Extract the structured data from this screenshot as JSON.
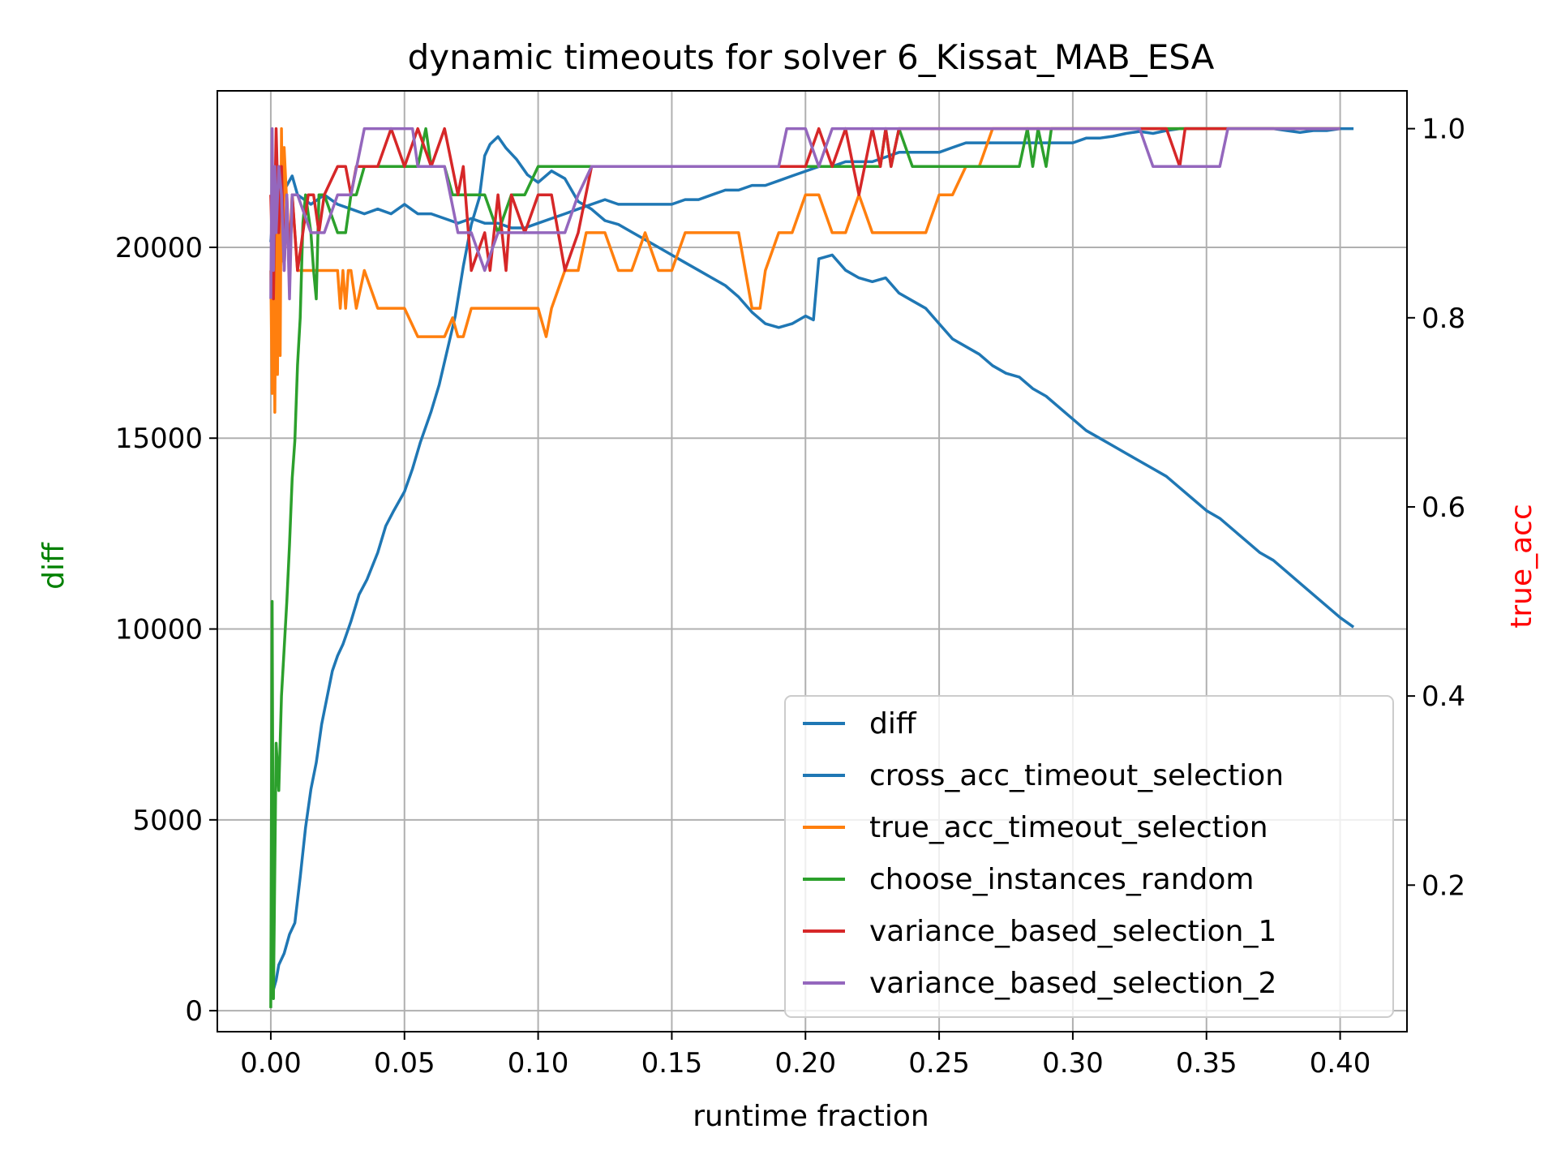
{
  "chart_data": {
    "type": "line",
    "title": "dynamic timeouts for solver 6_Kissat_MAB_ESA",
    "xlabel": "runtime fraction",
    "ylabel_left": "diff",
    "ylabel_right": "true_acc",
    "xlim": [
      -0.02,
      0.425
    ],
    "ylim_left": [
      -550,
      24100
    ],
    "ylim_right": [
      0.045,
      1.04
    ],
    "x_ticks": [
      0.0,
      0.05,
      0.1,
      0.15,
      0.2,
      0.25,
      0.3,
      0.35,
      0.4
    ],
    "x_tick_labels": [
      "0.00",
      "0.05",
      "0.10",
      "0.15",
      "0.20",
      "0.25",
      "0.30",
      "0.35",
      "0.40"
    ],
    "y_left_ticks": [
      0,
      5000,
      10000,
      15000,
      20000
    ],
    "y_left_tick_labels": [
      "0",
      "5000",
      "10000",
      "15000",
      "20000"
    ],
    "y_right_ticks": [
      0.2,
      0.4,
      0.6,
      0.8,
      1.0
    ],
    "y_right_tick_labels": [
      "0.2",
      "0.4",
      "0.6",
      "0.8",
      "1.0"
    ],
    "grid": true,
    "legend_position": "lower right",
    "colors": {
      "left_label": "#008000",
      "right_label": "#ff0000"
    },
    "series": [
      {
        "name": "diff",
        "axis": "left",
        "color": "#1f77b4",
        "x": [
          0.0,
          0.001,
          0.002,
          0.003,
          0.005,
          0.007,
          0.009,
          0.011,
          0.013,
          0.015,
          0.017,
          0.019,
          0.021,
          0.023,
          0.025,
          0.027,
          0.03,
          0.033,
          0.036,
          0.04,
          0.043,
          0.046,
          0.05,
          0.053,
          0.056,
          0.06,
          0.063,
          0.066,
          0.069,
          0.072,
          0.075,
          0.078,
          0.08,
          0.082,
          0.085,
          0.088,
          0.092,
          0.096,
          0.1,
          0.105,
          0.11,
          0.115,
          0.12,
          0.125,
          0.13,
          0.135,
          0.14,
          0.145,
          0.15,
          0.155,
          0.16,
          0.165,
          0.17,
          0.175,
          0.18,
          0.185,
          0.19,
          0.195,
          0.2,
          0.203,
          0.205,
          0.21,
          0.215,
          0.22,
          0.225,
          0.23,
          0.235,
          0.24,
          0.245,
          0.25,
          0.255,
          0.26,
          0.265,
          0.27,
          0.275,
          0.28,
          0.285,
          0.29,
          0.295,
          0.3,
          0.305,
          0.31,
          0.315,
          0.32,
          0.325,
          0.33,
          0.335,
          0.34,
          0.345,
          0.35,
          0.355,
          0.36,
          0.365,
          0.37,
          0.375,
          0.38,
          0.385,
          0.39,
          0.395,
          0.4,
          0.405
        ],
        "y": [
          600,
          550,
          800,
          1200,
          1500,
          2000,
          2300,
          3500,
          4800,
          5800,
          6500,
          7500,
          8200,
          8900,
          9300,
          9600,
          10200,
          10900,
          11300,
          12000,
          12700,
          13100,
          13600,
          14200,
          14900,
          15700,
          16400,
          17300,
          18200,
          19500,
          20600,
          21300,
          22400,
          22700,
          22900,
          22600,
          22300,
          21900,
          21700,
          22000,
          21800,
          21200,
          21000,
          20700,
          20600,
          20400,
          20200,
          20000,
          19800,
          19600,
          19400,
          19200,
          19000,
          18700,
          18300,
          18000,
          17900,
          18000,
          18200,
          18100,
          19700,
          19800,
          19400,
          19200,
          19100,
          19200,
          18800,
          18600,
          18400,
          18000,
          17600,
          17400,
          17200,
          16900,
          16700,
          16600,
          16300,
          16100,
          15800,
          15500,
          15200,
          15000,
          14800,
          14600,
          14400,
          14200,
          14000,
          13700,
          13400,
          13100,
          12900,
          12600,
          12300,
          12000,
          11800,
          11500,
          11200,
          10900,
          10600,
          10300,
          10050
        ]
      },
      {
        "name": "cross_acc_timeout_selection",
        "axis": "right",
        "color": "#1f77b4",
        "x": [
          0.0,
          0.002,
          0.004,
          0.006,
          0.008,
          0.01,
          0.015,
          0.02,
          0.025,
          0.03,
          0.035,
          0.04,
          0.045,
          0.05,
          0.055,
          0.06,
          0.065,
          0.07,
          0.075,
          0.08,
          0.085,
          0.09,
          0.095,
          0.1,
          0.105,
          0.11,
          0.115,
          0.12,
          0.125,
          0.13,
          0.135,
          0.14,
          0.145,
          0.15,
          0.155,
          0.16,
          0.165,
          0.17,
          0.175,
          0.18,
          0.185,
          0.19,
          0.195,
          0.2,
          0.205,
          0.21,
          0.215,
          0.22,
          0.225,
          0.23,
          0.235,
          0.24,
          0.245,
          0.25,
          0.255,
          0.26,
          0.265,
          0.27,
          0.275,
          0.28,
          0.285,
          0.29,
          0.295,
          0.3,
          0.305,
          0.31,
          0.315,
          0.32,
          0.325,
          0.33,
          0.335,
          0.34,
          0.345,
          0.35,
          0.355,
          0.36,
          0.365,
          0.37,
          0.375,
          0.38,
          0.385,
          0.39,
          0.395,
          0.4,
          0.405
        ],
        "y": [
          0.88,
          0.95,
          0.93,
          0.94,
          0.95,
          0.93,
          0.92,
          0.93,
          0.92,
          0.915,
          0.91,
          0.915,
          0.91,
          0.92,
          0.91,
          0.91,
          0.905,
          0.9,
          0.905,
          0.9,
          0.9,
          0.895,
          0.895,
          0.9,
          0.905,
          0.91,
          0.915,
          0.92,
          0.925,
          0.92,
          0.92,
          0.92,
          0.92,
          0.92,
          0.925,
          0.925,
          0.93,
          0.935,
          0.935,
          0.94,
          0.94,
          0.945,
          0.95,
          0.955,
          0.96,
          0.96,
          0.965,
          0.965,
          0.965,
          0.97,
          0.975,
          0.975,
          0.975,
          0.975,
          0.98,
          0.985,
          0.985,
          0.985,
          0.985,
          0.985,
          0.985,
          0.985,
          0.985,
          0.985,
          0.99,
          0.99,
          0.992,
          0.995,
          0.997,
          0.995,
          0.998,
          1.0,
          1.0,
          1.0,
          1.0,
          1.0,
          1.0,
          1.0,
          1.0,
          0.998,
          0.996,
          0.998,
          0.998,
          1.0,
          1.0
        ]
      },
      {
        "name": "true_acc_timeout_selection",
        "axis": "right",
        "color": "#ff7f0e",
        "x": [
          0.0,
          0.0005,
          0.001,
          0.0015,
          0.002,
          0.0025,
          0.003,
          0.0035,
          0.004,
          0.0045,
          0.005,
          0.006,
          0.007,
          0.008,
          0.01,
          0.015,
          0.02,
          0.025,
          0.026,
          0.027,
          0.028,
          0.029,
          0.03,
          0.032,
          0.035,
          0.04,
          0.045,
          0.05,
          0.055,
          0.06,
          0.065,
          0.068,
          0.07,
          0.072,
          0.075,
          0.08,
          0.085,
          0.09,
          0.095,
          0.1,
          0.103,
          0.105,
          0.11,
          0.115,
          0.118,
          0.12,
          0.125,
          0.13,
          0.135,
          0.14,
          0.145,
          0.15,
          0.155,
          0.16,
          0.165,
          0.17,
          0.175,
          0.18,
          0.183,
          0.185,
          0.19,
          0.195,
          0.2,
          0.205,
          0.21,
          0.215,
          0.22,
          0.225,
          0.23,
          0.235,
          0.24,
          0.245,
          0.25,
          0.255,
          0.26,
          0.265,
          0.27,
          0.4
        ],
        "y": [
          0.85,
          0.72,
          0.94,
          0.7,
          0.92,
          0.74,
          0.96,
          0.76,
          1.0,
          0.86,
          0.98,
          0.92,
          0.87,
          0.93,
          0.85,
          0.85,
          0.85,
          0.85,
          0.81,
          0.85,
          0.81,
          0.85,
          0.85,
          0.81,
          0.85,
          0.81,
          0.81,
          0.81,
          0.78,
          0.78,
          0.78,
          0.8,
          0.78,
          0.78,
          0.81,
          0.81,
          0.81,
          0.81,
          0.81,
          0.81,
          0.78,
          0.81,
          0.85,
          0.85,
          0.89,
          0.89,
          0.89,
          0.85,
          0.85,
          0.89,
          0.85,
          0.85,
          0.89,
          0.89,
          0.89,
          0.89,
          0.89,
          0.81,
          0.81,
          0.85,
          0.89,
          0.89,
          0.93,
          0.93,
          0.89,
          0.89,
          0.93,
          0.89,
          0.89,
          0.89,
          0.89,
          0.89,
          0.93,
          0.93,
          0.96,
          0.96,
          1.0,
          1.0
        ]
      },
      {
        "name": "choose_instances_random",
        "axis": "right",
        "color": "#2ca02c",
        "x": [
          0.0,
          0.0005,
          0.001,
          0.002,
          0.003,
          0.004,
          0.005,
          0.006,
          0.007,
          0.008,
          0.009,
          0.01,
          0.011,
          0.012,
          0.013,
          0.015,
          0.016,
          0.017,
          0.018,
          0.02,
          0.025,
          0.028,
          0.03,
          0.032,
          0.035,
          0.04,
          0.045,
          0.05,
          0.055,
          0.058,
          0.06,
          0.065,
          0.068,
          0.07,
          0.075,
          0.08,
          0.085,
          0.09,
          0.095,
          0.1,
          0.105,
          0.11,
          0.115,
          0.12,
          0.2,
          0.205,
          0.21,
          0.215,
          0.22,
          0.225,
          0.228,
          0.23,
          0.232,
          0.235,
          0.24,
          0.245,
          0.25,
          0.255,
          0.26,
          0.265,
          0.27,
          0.275,
          0.28,
          0.283,
          0.285,
          0.287,
          0.29,
          0.292,
          0.295,
          0.3,
          0.4
        ],
        "y": [
          0.07,
          0.5,
          0.08,
          0.35,
          0.3,
          0.4,
          0.45,
          0.5,
          0.56,
          0.63,
          0.67,
          0.75,
          0.8,
          0.9,
          0.93,
          0.89,
          0.85,
          0.82,
          0.93,
          0.93,
          0.89,
          0.89,
          0.93,
          0.93,
          0.96,
          0.96,
          0.96,
          0.96,
          0.96,
          1.0,
          0.96,
          0.96,
          0.93,
          0.93,
          0.93,
          0.93,
          0.89,
          0.93,
          0.93,
          0.96,
          0.96,
          0.96,
          0.96,
          0.96,
          0.96,
          0.96,
          0.96,
          0.96,
          0.96,
          0.96,
          0.96,
          1.0,
          0.96,
          1.0,
          0.96,
          0.96,
          0.96,
          0.96,
          0.96,
          0.96,
          0.96,
          0.96,
          0.96,
          1.0,
          0.96,
          1.0,
          0.96,
          1.0,
          1.0,
          1.0,
          1.0
        ]
      },
      {
        "name": "variance_based_selection_1",
        "axis": "right",
        "color": "#d62728",
        "x": [
          0.0,
          0.001,
          0.002,
          0.003,
          0.004,
          0.005,
          0.006,
          0.007,
          0.008,
          0.01,
          0.012,
          0.014,
          0.016,
          0.018,
          0.02,
          0.025,
          0.028,
          0.03,
          0.032,
          0.035,
          0.04,
          0.045,
          0.05,
          0.055,
          0.06,
          0.065,
          0.07,
          0.072,
          0.075,
          0.08,
          0.082,
          0.085,
          0.088,
          0.09,
          0.095,
          0.1,
          0.105,
          0.11,
          0.115,
          0.12,
          0.2,
          0.205,
          0.21,
          0.215,
          0.22,
          0.225,
          0.228,
          0.23,
          0.232,
          0.235,
          0.24,
          0.33,
          0.335,
          0.34,
          0.342,
          0.345,
          0.35,
          0.4
        ],
        "y": [
          0.93,
          0.82,
          1.0,
          0.89,
          0.96,
          0.85,
          0.93,
          0.85,
          0.93,
          0.85,
          0.89,
          0.93,
          0.93,
          0.89,
          0.93,
          0.96,
          0.96,
          0.93,
          0.96,
          0.96,
          0.96,
          1.0,
          0.96,
          1.0,
          0.96,
          1.0,
          0.93,
          0.96,
          0.85,
          0.89,
          0.85,
          0.93,
          0.85,
          0.93,
          0.89,
          0.93,
          0.93,
          0.85,
          0.89,
          0.96,
          0.96,
          1.0,
          0.96,
          1.0,
          0.93,
          1.0,
          0.96,
          1.0,
          0.96,
          1.0,
          1.0,
          1.0,
          1.0,
          0.96,
          1.0,
          1.0,
          1.0,
          1.0
        ]
      },
      {
        "name": "variance_based_selection_2",
        "axis": "right",
        "color": "#9467bd",
        "x": [
          0.0,
          0.0005,
          0.001,
          0.0015,
          0.002,
          0.003,
          0.004,
          0.005,
          0.006,
          0.007,
          0.008,
          0.01,
          0.015,
          0.02,
          0.025,
          0.03,
          0.035,
          0.04,
          0.045,
          0.05,
          0.053,
          0.055,
          0.06,
          0.065,
          0.07,
          0.075,
          0.08,
          0.085,
          0.09,
          0.095,
          0.1,
          0.105,
          0.11,
          0.115,
          0.12,
          0.19,
          0.193,
          0.2,
          0.205,
          0.21,
          0.215,
          0.22,
          0.325,
          0.33,
          0.335,
          0.34,
          0.345,
          0.35,
          0.355,
          0.358,
          0.36,
          0.4
        ],
        "y": [
          0.82,
          1.0,
          0.85,
          0.96,
          0.89,
          0.96,
          0.93,
          0.85,
          0.93,
          0.82,
          0.93,
          0.93,
          0.89,
          0.89,
          0.93,
          0.93,
          1.0,
          1.0,
          1.0,
          1.0,
          1.0,
          0.96,
          0.96,
          0.96,
          0.89,
          0.89,
          0.85,
          0.89,
          0.89,
          0.89,
          0.89,
          0.89,
          0.89,
          0.93,
          0.96,
          0.96,
          1.0,
          1.0,
          0.96,
          1.0,
          1.0,
          1.0,
          1.0,
          0.96,
          0.96,
          0.96,
          0.96,
          0.96,
          0.96,
          1.0,
          1.0,
          1.0
        ]
      }
    ]
  }
}
